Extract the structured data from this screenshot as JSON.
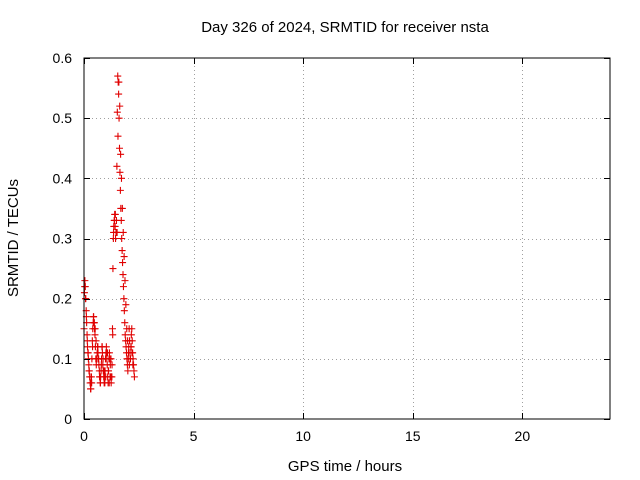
{
  "chart_data": {
    "type": "scatter",
    "title": "Day 326 of 2024, SRMTID for receiver nsta",
    "xlabel": "GPS time / hours",
    "ylabel": "SRMTID / TECUs",
    "xlim": [
      0,
      24
    ],
    "ylim": [
      0,
      0.6
    ],
    "xticks": [
      0,
      5,
      10,
      15,
      20
    ],
    "xtick_labels": [
      "0",
      "5",
      "10",
      "15",
      "20"
    ],
    "yticks": [
      0,
      0.1,
      0.2,
      0.3,
      0.4,
      0.5,
      0.6
    ],
    "ytick_labels": [
      "0",
      "0.1",
      "0.2",
      "0.3",
      "0.4",
      "0.5",
      "0.6"
    ],
    "grid": true,
    "marker": "+",
    "series": [
      {
        "name": "SRMTID",
        "color": "#e00000",
        "x": [
          0.0,
          0.02,
          0.04,
          0.06,
          0.08,
          0.1,
          0.12,
          0.14,
          0.16,
          0.18,
          0.2,
          0.22,
          0.24,
          0.26,
          0.28,
          0.3,
          0.32,
          0.34,
          0.36,
          0.38,
          0.4,
          0.42,
          0.44,
          0.46,
          0.48,
          0.5,
          0.52,
          0.54,
          0.56,
          0.58,
          0.6,
          0.62,
          0.64,
          0.66,
          0.68,
          0.7,
          0.72,
          0.74,
          0.76,
          0.78,
          0.8,
          0.82,
          0.84,
          0.86,
          0.88,
          0.9,
          0.92,
          0.94,
          0.96,
          0.98,
          1.0,
          1.02,
          1.04,
          1.06,
          1.08,
          1.1,
          1.12,
          1.14,
          1.16,
          1.18,
          1.2,
          1.22,
          1.24,
          1.26,
          1.28,
          1.3,
          1.32,
          1.34,
          1.36,
          1.38,
          1.4,
          1.42,
          1.44,
          1.46,
          1.48,
          1.5,
          1.52,
          1.54,
          1.56,
          1.58,
          1.6,
          1.62,
          1.64,
          1.66,
          1.68,
          1.7,
          1.72,
          1.74,
          1.76,
          1.78,
          1.8,
          1.82,
          1.84,
          1.86,
          1.88,
          1.9,
          1.92,
          1.94,
          1.96,
          1.98,
          2.0,
          2.02,
          2.04,
          2.06,
          2.08,
          2.1,
          2.12,
          2.14,
          2.16,
          2.18,
          2.2,
          2.22,
          2.24,
          2.26,
          2.28,
          2.3,
          0.03,
          0.07,
          0.11,
          0.15,
          0.19,
          0.23,
          0.27,
          0.31,
          0.35,
          0.39,
          0.43,
          0.47,
          0.51,
          0.55,
          0.59,
          0.63,
          0.67,
          0.71,
          0.75,
          0.79,
          0.83,
          0.87,
          0.91,
          0.95,
          0.99,
          1.03,
          1.07,
          1.11,
          1.15,
          1.19,
          1.23,
          1.27,
          1.31,
          1.35,
          1.39,
          1.43,
          1.47,
          1.51,
          1.55,
          1.59,
          1.63,
          1.67,
          1.71,
          1.75,
          1.79,
          1.83,
          1.87,
          1.91,
          1.95,
          1.99,
          2.03,
          2.07,
          2.11,
          2.15,
          2.19,
          2.23
        ],
        "y": [
          0.15,
          0.21,
          0.23,
          0.22,
          0.2,
          0.18,
          0.16,
          0.14,
          0.12,
          0.11,
          0.1,
          0.09,
          0.08,
          0.07,
          0.06,
          0.05,
          0.06,
          0.07,
          0.1,
          0.13,
          0.15,
          0.16,
          0.17,
          0.16,
          0.15,
          0.14,
          0.12,
          0.1,
          0.09,
          0.1,
          0.11,
          0.12,
          0.11,
          0.1,
          0.09,
          0.08,
          0.07,
          0.06,
          0.07,
          0.08,
          0.1,
          0.12,
          0.11,
          0.09,
          0.08,
          0.07,
          0.06,
          0.07,
          0.08,
          0.1,
          0.11,
          0.12,
          0.1,
          0.09,
          0.07,
          0.06,
          0.08,
          0.1,
          0.11,
          0.1,
          0.09,
          0.07,
          0.06,
          0.07,
          0.09,
          0.15,
          0.25,
          0.3,
          0.32,
          0.33,
          0.34,
          0.32,
          0.3,
          0.31,
          0.33,
          0.42,
          0.51,
          0.57,
          0.56,
          0.54,
          0.5,
          0.45,
          0.41,
          0.38,
          0.35,
          0.33,
          0.3,
          0.28,
          0.26,
          0.24,
          0.22,
          0.2,
          0.18,
          0.16,
          0.14,
          0.13,
          0.12,
          0.11,
          0.1,
          0.09,
          0.08,
          0.1,
          0.12,
          0.15,
          0.13,
          0.11,
          0.1,
          0.12,
          0.14,
          0.15,
          0.13,
          0.11,
          0.1,
          0.09,
          0.08,
          0.07,
          0.22,
          0.2,
          0.17,
          0.13,
          0.11,
          0.08,
          0.07,
          0.05,
          0.06,
          0.12,
          0.17,
          0.16,
          0.15,
          0.13,
          0.1,
          0.12,
          0.1,
          0.07,
          0.06,
          0.09,
          0.12,
          0.1,
          0.08,
          0.06,
          0.07,
          0.11,
          0.11,
          0.08,
          0.06,
          0.07,
          0.1,
          0.07,
          0.14,
          0.31,
          0.33,
          0.34,
          0.31,
          0.31,
          0.47,
          0.56,
          0.52,
          0.44,
          0.4,
          0.35,
          0.31,
          0.27,
          0.23,
          0.19,
          0.15,
          0.13,
          0.11,
          0.09,
          0.1,
          0.12,
          0.11,
          0.09
        ]
      }
    ]
  }
}
